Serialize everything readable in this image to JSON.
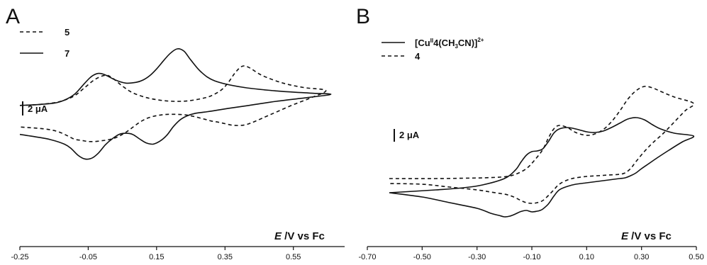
{
  "chart_data": [
    {
      "type": "line",
      "panel_label": "A",
      "xlabel_italic": "E",
      "xlabel_rest": " /V vs Fc",
      "x_ticks": [
        "-0.25",
        "-0.05",
        "0.15",
        "0.35",
        "0.55"
      ],
      "xlim": [
        -0.25,
        0.7
      ],
      "scale_bar_label": "2 μA",
      "legend_position": "top-left",
      "series": [
        {
          "name": "5",
          "style": "dashed",
          "x": [
            -0.25,
            -0.2,
            -0.15,
            -0.12,
            -0.09,
            -0.06,
            -0.03,
            0.0,
            0.02,
            0.05,
            0.08,
            0.12,
            0.16,
            0.2,
            0.24,
            0.28,
            0.31,
            0.34,
            0.36,
            0.38,
            0.4,
            0.42,
            0.46,
            0.52,
            0.58,
            0.645,
            0.6,
            0.55,
            0.5,
            0.46,
            0.43,
            0.41,
            0.39,
            0.37,
            0.35,
            0.33,
            0.31,
            0.29,
            0.26,
            0.23,
            0.19,
            0.16,
            0.13,
            0.11,
            0.09,
            0.07,
            0.05,
            0.03,
            0.01,
            -0.01,
            -0.03,
            -0.05,
            -0.07,
            -0.09,
            -0.11,
            -0.14,
            -0.18,
            -0.25
          ],
          "y": [
            -1.5,
            -1.4,
            -1.15,
            -0.8,
            -0.2,
            0.9,
            2.0,
            2.55,
            2.2,
            1.1,
            0.2,
            -0.45,
            -0.8,
            -0.95,
            -0.9,
            -0.6,
            -0.2,
            0.6,
            1.6,
            2.9,
            3.75,
            3.6,
            2.5,
            1.5,
            0.9,
            0.5,
            -0.5,
            -1.4,
            -2.4,
            -3.2,
            -3.8,
            -4.1,
            -4.2,
            -4.15,
            -3.95,
            -3.75,
            -3.6,
            -3.35,
            -3.0,
            -2.75,
            -2.7,
            -2.8,
            -3.1,
            -3.5,
            -4.1,
            -4.8,
            -5.4,
            -5.85,
            -6.1,
            -6.25,
            -6.35,
            -6.35,
            -6.2,
            -6.05,
            -5.6,
            -5.0,
            -4.65,
            -4.4
          ]
        },
        {
          "name": "7",
          "style": "solid",
          "x": [
            -0.25,
            -0.2,
            -0.15,
            -0.12,
            -0.09,
            -0.06,
            -0.04,
            -0.02,
            0.0,
            0.03,
            0.06,
            0.09,
            0.11,
            0.13,
            0.15,
            0.17,
            0.19,
            0.21,
            0.23,
            0.25,
            0.28,
            0.32,
            0.4,
            0.5,
            0.6,
            0.66,
            0.6,
            0.5,
            0.42,
            0.36,
            0.32,
            0.29,
            0.26,
            0.24,
            0.22,
            0.2,
            0.18,
            0.16,
            0.14,
            0.12,
            0.1,
            0.08,
            0.06,
            0.04,
            0.02,
            0.0,
            -0.02,
            -0.04,
            -0.06,
            -0.08,
            -0.1,
            -0.12,
            -0.16,
            -0.2,
            -0.25
          ],
          "y": [
            -1.5,
            -1.4,
            -1.2,
            -0.8,
            0.0,
            1.5,
            2.4,
            2.8,
            2.6,
            1.9,
            1.5,
            1.6,
            1.9,
            2.5,
            3.4,
            4.5,
            5.5,
            6.1,
            5.8,
            4.6,
            3.0,
            1.8,
            0.95,
            0.45,
            0.15,
            0.0,
            -0.4,
            -0.95,
            -1.5,
            -1.9,
            -2.2,
            -2.4,
            -2.6,
            -2.9,
            -3.4,
            -4.3,
            -5.5,
            -6.3,
            -6.7,
            -6.55,
            -6.0,
            -5.4,
            -5.25,
            -5.4,
            -6.0,
            -6.8,
            -7.9,
            -8.6,
            -8.7,
            -8.2,
            -7.3,
            -6.7,
            -6.1,
            -5.75,
            -5.4
          ]
        }
      ]
    },
    {
      "type": "line",
      "panel_label": "B",
      "xlabel_italic": "E",
      "xlabel_rest": " /V vs Fc",
      "x_ticks": [
        "-0.70",
        "-0.50",
        "-0.30",
        "-0.10",
        "0.10",
        "0.30",
        "0.50"
      ],
      "xlim": [
        -0.7,
        0.5
      ],
      "scale_bar_label": "2 μA",
      "legend_position": "top-left",
      "series": [
        {
          "name": "[CuII4(CH3CN)]2+",
          "style": "solid",
          "x": [
            -0.62,
            -0.45,
            -0.35,
            -0.28,
            -0.2,
            -0.16,
            -0.14,
            -0.12,
            -0.1,
            -0.08,
            -0.06,
            -0.04,
            -0.02,
            0.0,
            0.03,
            0.06,
            0.1,
            0.13,
            0.16,
            0.19,
            0.22,
            0.25,
            0.28,
            0.31,
            0.34,
            0.37,
            0.42,
            0.49,
            0.45,
            0.4,
            0.36,
            0.33,
            0.3,
            0.28,
            0.26,
            0.24,
            0.22,
            0.18,
            0.14,
            0.1,
            0.06,
            0.03,
            0.0,
            -0.02,
            -0.04,
            -0.06,
            -0.07,
            -0.08,
            -0.1,
            -0.12,
            -0.14,
            -0.16,
            -0.18,
            -0.2,
            -0.22,
            -0.25,
            -0.3,
            -0.4,
            -0.5,
            -0.62
          ],
          "y": [
            -4.6,
            -4.2,
            -3.9,
            -3.5,
            -2.6,
            -1.4,
            -0.3,
            0.7,
            1.2,
            1.3,
            1.6,
            2.6,
            3.8,
            4.4,
            4.6,
            4.4,
            4.0,
            3.9,
            4.1,
            4.6,
            5.2,
            5.8,
            6.0,
            5.7,
            5.0,
            4.4,
            3.8,
            3.4,
            2.6,
            1.4,
            0.4,
            -0.4,
            -1.2,
            -1.8,
            -2.2,
            -2.5,
            -2.6,
            -2.8,
            -3.0,
            -3.2,
            -3.4,
            -3.7,
            -4.2,
            -5.1,
            -6.2,
            -6.9,
            -7.1,
            -7.2,
            -7.3,
            -7.1,
            -7.25,
            -7.6,
            -7.9,
            -8.0,
            -7.8,
            -7.5,
            -6.8,
            -6.0,
            -5.2,
            -4.6
          ]
        },
        {
          "name": "4",
          "style": "dashed",
          "x": [
            -0.62,
            -0.45,
            -0.35,
            -0.28,
            -0.2,
            -0.16,
            -0.12,
            -0.09,
            -0.06,
            -0.04,
            -0.02,
            0.0,
            0.03,
            0.06,
            0.1,
            0.13,
            0.16,
            0.19,
            0.22,
            0.25,
            0.28,
            0.31,
            0.34,
            0.37,
            0.42,
            0.49,
            0.46,
            0.42,
            0.38,
            0.34,
            0.31,
            0.28,
            0.26,
            0.24,
            0.22,
            0.18,
            0.14,
            0.1,
            0.06,
            0.03,
            0.0,
            -0.02,
            -0.04,
            -0.06,
            -0.08,
            -0.1,
            -0.12,
            -0.14,
            -0.16,
            -0.18,
            -0.2,
            -0.25,
            -0.3,
            -0.4,
            -0.5,
            -0.62
          ],
          "y": [
            -2.6,
            -2.6,
            -2.55,
            -2.5,
            -2.35,
            -2.0,
            -1.2,
            0.0,
            1.5,
            3.1,
            4.4,
            4.9,
            4.6,
            3.9,
            3.5,
            3.7,
            4.3,
            5.4,
            6.9,
            8.6,
            9.8,
            10.4,
            10.2,
            9.7,
            8.9,
            8.0,
            7.0,
            5.4,
            3.8,
            2.4,
            1.2,
            -0.2,
            -1.2,
            -1.8,
            -2.0,
            -2.1,
            -2.2,
            -2.3,
            -2.5,
            -2.8,
            -3.4,
            -4.2,
            -5.0,
            -5.7,
            -6.0,
            -6.1,
            -6.0,
            -5.7,
            -5.3,
            -5.0,
            -4.8,
            -4.5,
            -4.2,
            -3.8,
            -3.4,
            -3.3
          ]
        }
      ]
    }
  ]
}
